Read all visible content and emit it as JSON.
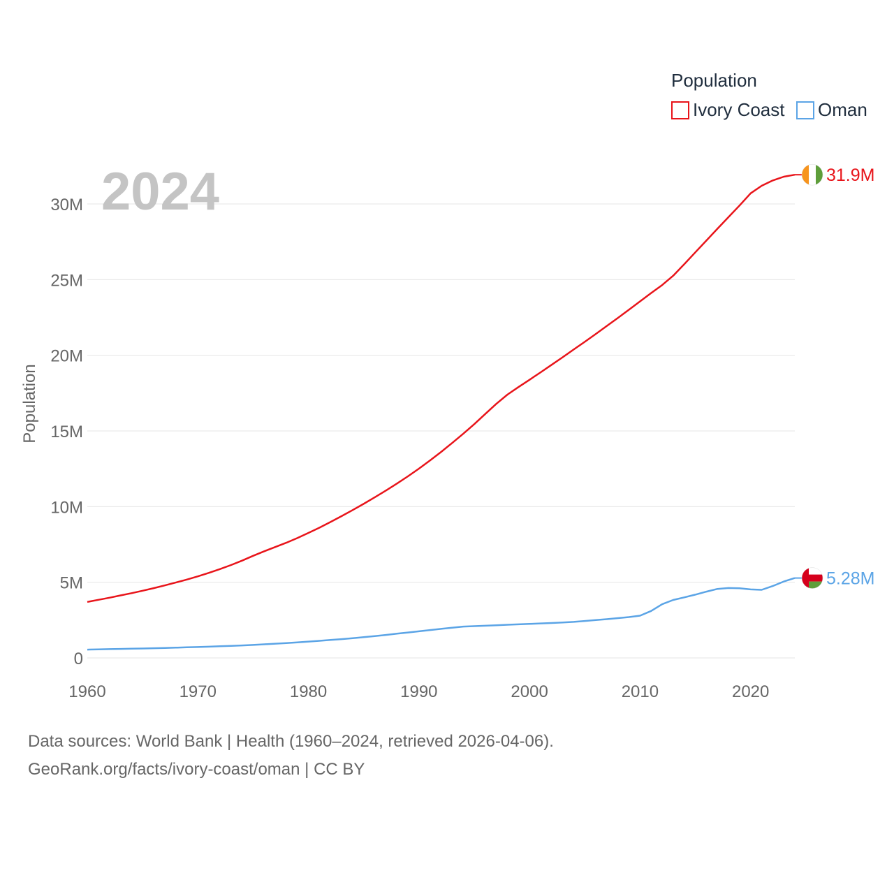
{
  "chart_data": {
    "type": "line",
    "current_year_label": "2024",
    "ylabel": "Population",
    "legend_title": "Population",
    "x": [
      1960,
      1961,
      1962,
      1963,
      1964,
      1965,
      1966,
      1967,
      1968,
      1969,
      1970,
      1971,
      1972,
      1973,
      1974,
      1975,
      1976,
      1977,
      1978,
      1979,
      1980,
      1981,
      1982,
      1983,
      1984,
      1985,
      1986,
      1987,
      1988,
      1989,
      1990,
      1991,
      1992,
      1993,
      1994,
      1995,
      1996,
      1997,
      1998,
      1999,
      2000,
      2001,
      2002,
      2003,
      2004,
      2005,
      2006,
      2007,
      2008,
      2009,
      2010,
      2011,
      2012,
      2013,
      2014,
      2015,
      2016,
      2017,
      2018,
      2019,
      2020,
      2021,
      2022,
      2023,
      2024
    ],
    "xlim": [
      1960,
      2024
    ],
    "ylim": [
      0,
      33000000
    ],
    "x_ticks": [
      1960,
      1970,
      1980,
      1990,
      2000,
      2010,
      2020
    ],
    "y_ticks": [
      {
        "value": 0,
        "label": "0"
      },
      {
        "value": 5000000,
        "label": "5M"
      },
      {
        "value": 10000000,
        "label": "10M"
      },
      {
        "value": 15000000,
        "label": "15M"
      },
      {
        "value": 20000000,
        "label": "20M"
      },
      {
        "value": 25000000,
        "label": "25M"
      },
      {
        "value": 30000000,
        "label": "30M"
      }
    ],
    "series": [
      {
        "name": "Ivory Coast",
        "color": "#e8141a",
        "end_label": "31.9M",
        "flag": "ivory-coast-flag-icon",
        "values": [
          3700000,
          3840000,
          3980000,
          4130000,
          4280000,
          4440000,
          4610000,
          4790000,
          4980000,
          5180000,
          5390000,
          5620000,
          5870000,
          6140000,
          6430000,
          6750000,
          7050000,
          7330000,
          7610000,
          7920000,
          8260000,
          8610000,
          8980000,
          9370000,
          9770000,
          10180000,
          10610000,
          11060000,
          11520000,
          12000000,
          12510000,
          13050000,
          13610000,
          14200000,
          14810000,
          15450000,
          16120000,
          16790000,
          17400000,
          17900000,
          18380000,
          18870000,
          19370000,
          19870000,
          20380000,
          20890000,
          21410000,
          21940000,
          22470000,
          23010000,
          23560000,
          24110000,
          24640000,
          25260000,
          26020000,
          26800000,
          27580000,
          28360000,
          29130000,
          29900000,
          30700000,
          31200000,
          31550000,
          31800000,
          31930000
        ]
      },
      {
        "name": "Oman",
        "color": "#5ba4e6",
        "end_label": "5.28M",
        "flag": "oman-flag-icon",
        "values": [
          550000,
          565000,
          580000,
          595000,
          610000,
          625000,
          640000,
          660000,
          680000,
          700000,
          720000,
          745000,
          770000,
          795000,
          825000,
          860000,
          900000,
          940000,
          985000,
          1030000,
          1080000,
          1130000,
          1185000,
          1240000,
          1300000,
          1370000,
          1440000,
          1520000,
          1600000,
          1680000,
          1760000,
          1840000,
          1920000,
          2000000,
          2070000,
          2100000,
          2130000,
          2160000,
          2190000,
          2220000,
          2250000,
          2280000,
          2310000,
          2340000,
          2380000,
          2440000,
          2500000,
          2560000,
          2630000,
          2700000,
          2790000,
          3100000,
          3550000,
          3830000,
          4000000,
          4180000,
          4380000,
          4560000,
          4620000,
          4600000,
          4530000,
          4500000,
          4750000,
          5050000,
          5280000
        ]
      }
    ]
  },
  "footer": {
    "line1": "Data sources: World Bank | Health (1960–2024, retrieved 2026-04-06).",
    "line2": "GeoRank.org/facts/ivory-coast/oman | CC BY"
  },
  "colors": {
    "grid": "#e6e6e6",
    "axis_text": "#666666",
    "watermark": "#c4c4c4",
    "flag_orange": "#f7941d",
    "flag_green": "#5e9e3a",
    "flag_red": "#d6001c"
  }
}
